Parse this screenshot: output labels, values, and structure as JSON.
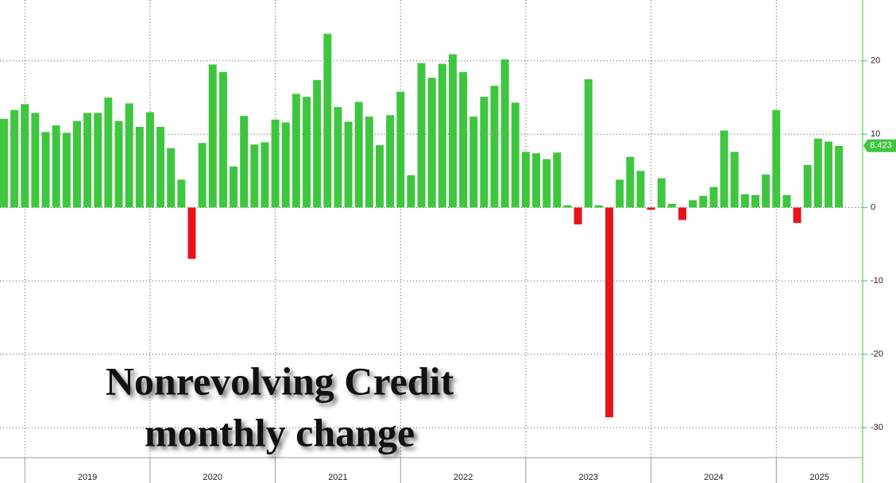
{
  "chart_data": {
    "type": "bar",
    "title": "Nonrevolving Credit",
    "subtitle": "monthly change",
    "categories": [
      null,
      null,
      null,
      null,
      null,
      null,
      null,
      null,
      null,
      null,
      null,
      null,
      null,
      null,
      null,
      null,
      null,
      null,
      null,
      null,
      null,
      null,
      null,
      null,
      null,
      null,
      null,
      null,
      null,
      null,
      null,
      null,
      null,
      null,
      null,
      null,
      null,
      null,
      null,
      null,
      null,
      null,
      null,
      null,
      null,
      null,
      null,
      null,
      null,
      null,
      null,
      null,
      null,
      null,
      null,
      null,
      null,
      null,
      null,
      null,
      null,
      null,
      null,
      null,
      null,
      null,
      null,
      null,
      null,
      null,
      null,
      null,
      null,
      null,
      null,
      null,
      null,
      null,
      null,
      null,
      null
    ],
    "year_labels": [
      "2019",
      "2020",
      "2021",
      "2022",
      "2023",
      "2024",
      "2025"
    ],
    "values": [
      12.1,
      13.3,
      14.1,
      12.9,
      10.3,
      11.2,
      10.2,
      11.8,
      12.9,
      12.9,
      15.0,
      11.8,
      14.2,
      11.0,
      13.0,
      11.0,
      8.1,
      3.8,
      -7.0,
      8.8,
      19.5,
      18.5,
      5.6,
      12.5,
      8.6,
      8.9,
      12.0,
      11.6,
      15.5,
      15.1,
      17.4,
      23.7,
      13.7,
      11.7,
      14.4,
      12.4,
      8.5,
      12.6,
      15.8,
      4.4,
      19.7,
      17.7,
      19.6,
      20.9,
      18.5,
      12.4,
      15.1,
      16.6,
      20.2,
      14.3,
      7.6,
      7.4,
      6.6,
      7.5,
      0.3,
      -2.3,
      17.5,
      0.3,
      -28.6,
      3.8,
      6.9,
      5.0,
      -0.3,
      4.0,
      0.5,
      -1.7,
      1.0,
      1.6,
      2.8,
      10.5,
      7.6,
      1.8,
      1.7,
      4.5,
      13.3,
      1.7,
      -2.1,
      5.8,
      9.4,
      9.0,
      8.423
    ],
    "positive_color": "#3fc63f",
    "negative_color": "#e8141a",
    "ylim": [
      -34.1,
      28.3
    ],
    "yticks": [
      -30,
      -20,
      -10,
      0,
      10,
      20
    ],
    "grid": true
  }
}
